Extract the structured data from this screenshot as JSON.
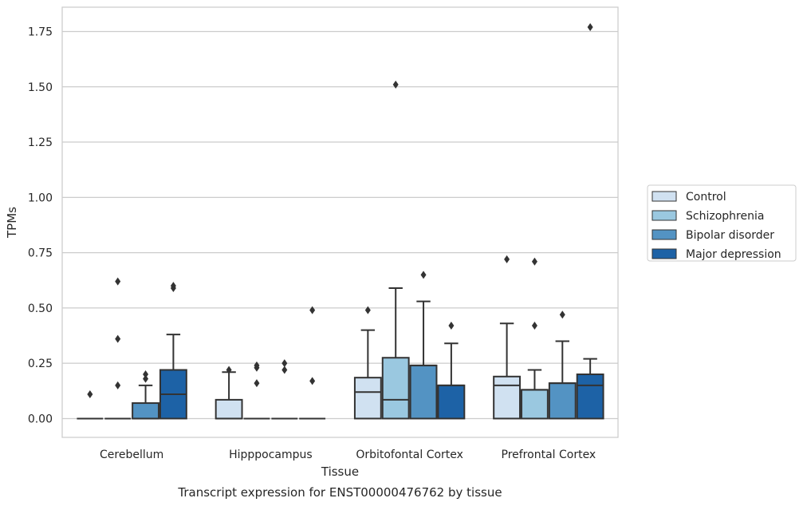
{
  "chart_data": {
    "type": "boxplot",
    "title": "Transcript expression for ENST00000476762 by tissue",
    "xlabel": "Tissue",
    "ylabel": "TPMs",
    "ylim": [
      -0.085,
      1.86
    ],
    "yticks": [
      "0.00",
      "0.25",
      "0.50",
      "0.75",
      "1.00",
      "1.25",
      "1.50",
      "1.75"
    ],
    "grid": "horizontal",
    "legend_position": "right",
    "categories": [
      "Cerebellum",
      "Hipppocampus",
      "Orbitofontal Cortex",
      "Prefrontal Cortex"
    ],
    "series": [
      {
        "name": "Control",
        "color": "#d0e1f1",
        "boxes": [
          {
            "q1": 0,
            "median": 0,
            "q3": 0,
            "whislo": 0,
            "whishi": 0,
            "fliers": [
              0.11
            ]
          },
          {
            "q1": 0,
            "median": 0,
            "q3": 0.085,
            "whislo": 0,
            "whishi": 0.21,
            "fliers": [
              0.22
            ]
          },
          {
            "q1": 0,
            "median": 0.12,
            "q3": 0.185,
            "whislo": 0,
            "whishi": 0.4,
            "fliers": [
              0.49
            ]
          },
          {
            "q1": 0,
            "median": 0.15,
            "q3": 0.19,
            "whislo": 0,
            "whishi": 0.43,
            "fliers": [
              0.72
            ]
          }
        ]
      },
      {
        "name": "Schizophrenia",
        "color": "#9ac8e0",
        "boxes": [
          {
            "q1": 0,
            "median": 0,
            "q3": 0,
            "whislo": 0,
            "whishi": 0,
            "fliers": [
              0.15,
              0.36,
              0.62
            ]
          },
          {
            "q1": 0,
            "median": 0,
            "q3": 0,
            "whislo": 0,
            "whishi": 0,
            "fliers": [
              0.16,
              0.23,
              0.24
            ]
          },
          {
            "q1": 0,
            "median": 0.085,
            "q3": 0.275,
            "whislo": 0,
            "whishi": 0.59,
            "fliers": [
              1.51
            ]
          },
          {
            "q1": 0,
            "median": 0.13,
            "q3": 0.13,
            "whislo": 0,
            "whishi": 0.22,
            "fliers": [
              0.42,
              0.71
            ]
          }
        ]
      },
      {
        "name": "Bipolar disorder",
        "color": "#5393c3",
        "boxes": [
          {
            "q1": 0,
            "median": 0,
            "q3": 0.07,
            "whislo": 0,
            "whishi": 0.15,
            "fliers": [
              0.18,
              0.2
            ]
          },
          {
            "q1": 0,
            "median": 0,
            "q3": 0,
            "whislo": 0,
            "whishi": 0,
            "fliers": [
              0.22,
              0.25
            ]
          },
          {
            "q1": 0,
            "median": 0.24,
            "q3": 0.24,
            "whislo": 0,
            "whishi": 0.53,
            "fliers": [
              0.65
            ]
          },
          {
            "q1": 0,
            "median": 0.16,
            "q3": 0.16,
            "whislo": 0,
            "whishi": 0.35,
            "fliers": [
              0.47
            ]
          }
        ]
      },
      {
        "name": "Major depression",
        "color": "#1d62a6",
        "boxes": [
          {
            "q1": 0,
            "median": 0.11,
            "q3": 0.22,
            "whislo": 0,
            "whishi": 0.38,
            "fliers": [
              0.59,
              0.6
            ]
          },
          {
            "q1": 0,
            "median": 0,
            "q3": 0,
            "whislo": 0,
            "whishi": 0,
            "fliers": [
              0.17,
              0.49
            ]
          },
          {
            "q1": 0,
            "median": 0.15,
            "q3": 0.15,
            "whislo": 0,
            "whishi": 0.34,
            "fliers": [
              0.42
            ]
          },
          {
            "q1": 0,
            "median": 0.15,
            "q3": 0.2,
            "whislo": 0,
            "whishi": 0.27,
            "fliers": [
              1.77
            ]
          }
        ]
      }
    ]
  }
}
